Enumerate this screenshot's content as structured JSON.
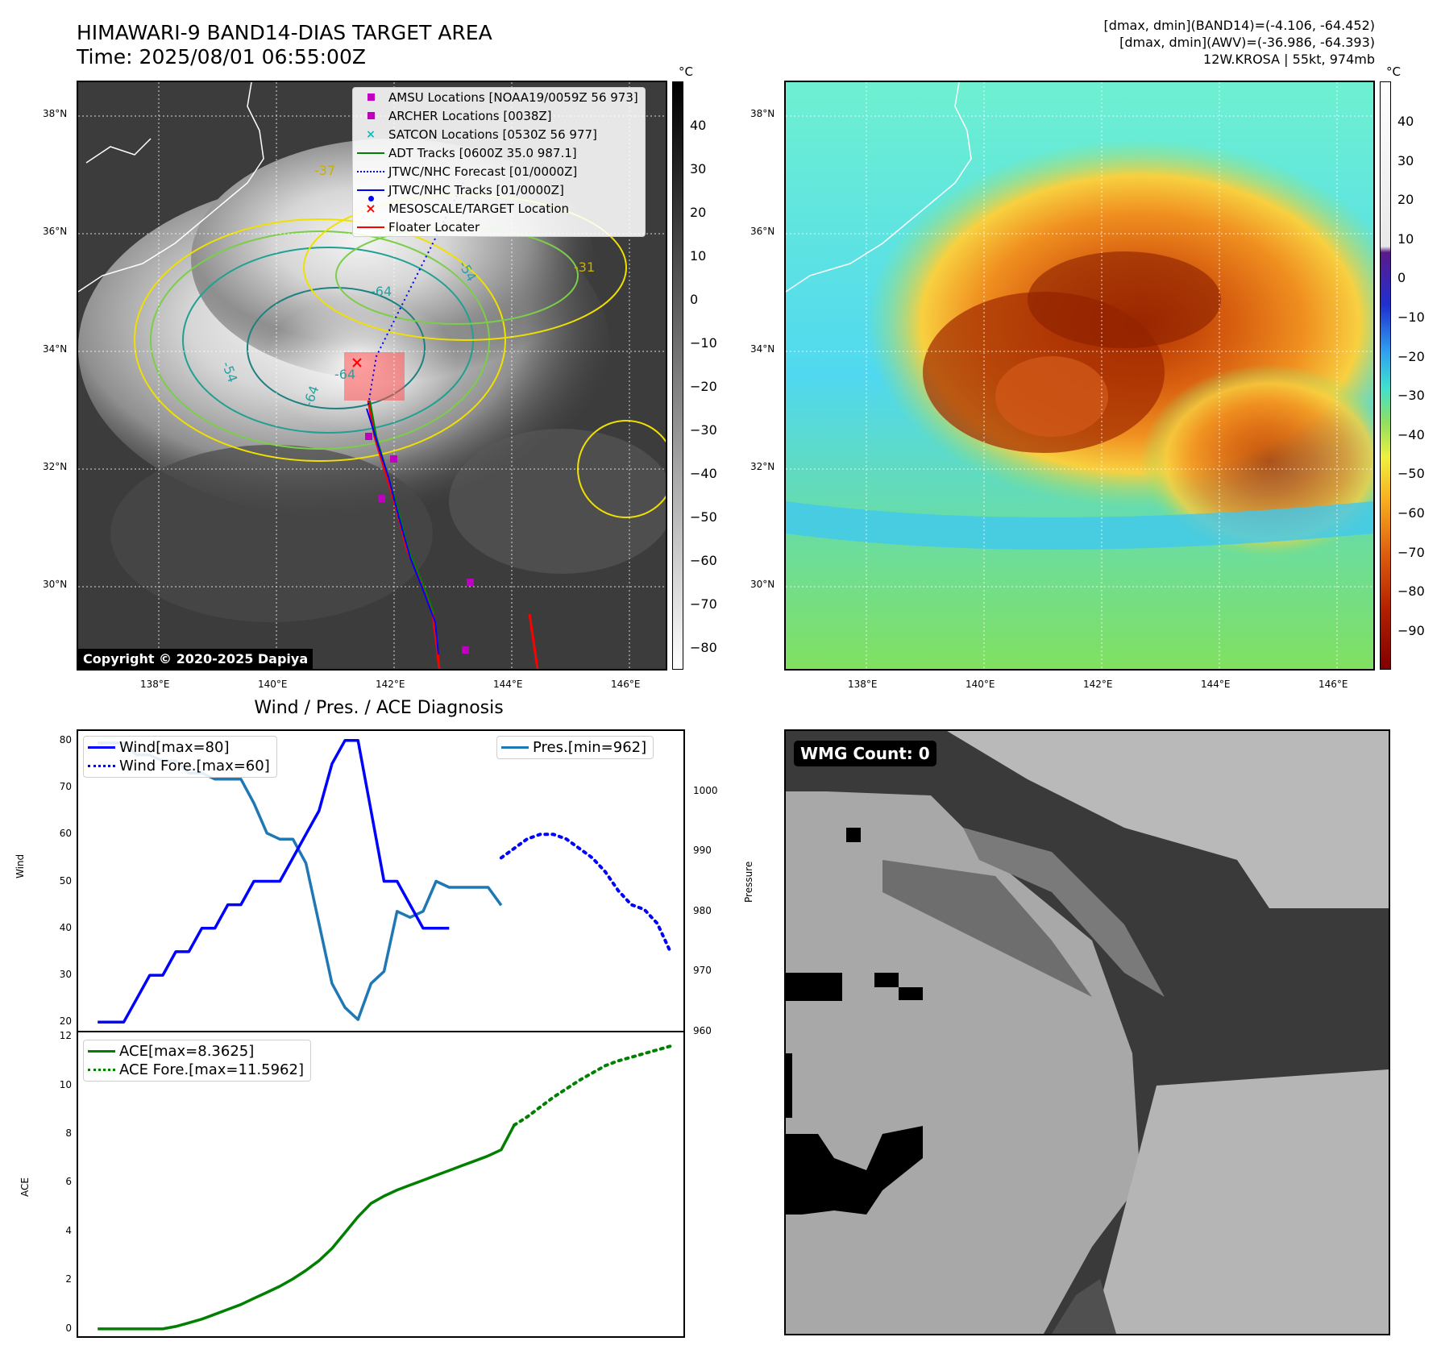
{
  "header": {
    "title": "HIMAWARI-9 BAND14-DIAS TARGET AREA",
    "time": "Time: 2025/08/01 06:55:00Z",
    "info_line1": "[dmax, dmin](BAND14)=(-4.106, -64.452)",
    "info_line2": "[dmax, dmin](AWV)=(-36.986, -64.393)",
    "info_line3": "12W.KROSA | 55kt, 974mb"
  },
  "copyright": "Copyright © 2020-2025 Dapiya",
  "map": {
    "lat_labels": [
      "38°N",
      "36°N",
      "34°N",
      "32°N",
      "30°N"
    ],
    "lon_labels": [
      "138°E",
      "140°E",
      "142°E",
      "144°E",
      "146°E"
    ],
    "contour_labels": [
      "-64",
      "-54",
      "-37",
      "-64",
      "-54",
      "-64",
      "-31"
    ],
    "legend": [
      {
        "label": "AMSU Locations [NOAA19/0059Z 56 973]",
        "color": "#c000c0",
        "symbol": "square"
      },
      {
        "label": "ARCHER Locations [0038Z]",
        "color": "#c000c0",
        "symbol": "square"
      },
      {
        "label": "SATCON Locations [0530Z 56 977]",
        "color": "#00bfbf",
        "symbol": "x"
      },
      {
        "label": "ADT Tracks [0600Z 35.0 987.1]",
        "color": "#008000",
        "symbol": "line"
      },
      {
        "label": "JTWC/NHC Forecast [01/0000Z]",
        "color": "#0000ff",
        "symbol": "dotted"
      },
      {
        "label": "JTWC/NHC Tracks [01/0000Z]",
        "color": "#0000ff",
        "symbol": "line-dot"
      },
      {
        "label": "MESOSCALE/TARGET Location",
        "color": "#ff0000",
        "symbol": "x"
      },
      {
        "label": "Floater Locater",
        "color": "#ff0000",
        "symbol": "line"
      }
    ],
    "colorbar1": {
      "unit": "°C",
      "ticks": [
        "40",
        "30",
        "20",
        "10",
        "0",
        "−10",
        "−20",
        "−30",
        "−40",
        "−50",
        "−60",
        "−70",
        "−80"
      ]
    },
    "colorbar2": {
      "unit": "°C",
      "ticks": [
        "40",
        "30",
        "20",
        "10",
        "0",
        "−10",
        "−20",
        "−30",
        "−40",
        "−50",
        "−60",
        "−70",
        "−80",
        "−90"
      ]
    }
  },
  "wmg": {
    "label": "WMG Count: 0"
  },
  "chart_data": {
    "type": "line",
    "title": "Wind / Pres. / ACE Diagnosis",
    "top": {
      "ylabel_left": "Wind",
      "ylabel_right": "Pressure",
      "ylim_left": [
        18,
        82
      ],
      "ylim_right": [
        960,
        1010
      ],
      "yticks_left": [
        "20",
        "30",
        "40",
        "50",
        "60",
        "70",
        "80"
      ],
      "yticks_right": [
        "960",
        "970",
        "980",
        "990",
        "1000"
      ],
      "series": [
        {
          "name": "Wind[max=80]",
          "color": "#0000ff",
          "style": "solid",
          "x": [
            0,
            1,
            2,
            3,
            4,
            5,
            6,
            7,
            8,
            9,
            10,
            11,
            12,
            13,
            14,
            15,
            16,
            17,
            18,
            19,
            20,
            21,
            22,
            23,
            24,
            25,
            26,
            27
          ],
          "values": [
            20,
            20,
            20,
            25,
            30,
            30,
            35,
            35,
            40,
            40,
            45,
            45,
            50,
            50,
            50,
            55,
            60,
            65,
            75,
            80,
            80,
            65,
            50,
            50,
            45,
            40,
            40,
            40
          ]
        },
        {
          "name": "Wind Fore.[max=60]",
          "color": "#0000ff",
          "style": "dotted",
          "x": [
            31,
            32,
            33,
            34,
            35,
            36,
            37,
            38,
            39,
            40,
            41,
            42,
            43,
            44
          ],
          "values": [
            55,
            57,
            59,
            60,
            60,
            59,
            57,
            55,
            52,
            48,
            45,
            44,
            41,
            35
          ]
        },
        {
          "name": "Pres.[min=962]",
          "color": "#1f77b4",
          "style": "solid",
          "x": [
            0,
            1,
            2,
            3,
            4,
            5,
            6,
            7,
            8,
            9,
            10,
            11,
            12,
            13,
            14,
            15,
            16,
            17,
            18,
            19,
            20,
            21,
            22,
            23,
            24,
            25,
            26,
            27,
            28,
            29,
            30,
            31
          ],
          "values": [
            1008,
            1008,
            1008,
            1006,
            1006,
            1005,
            1005,
            1003,
            1003,
            1002,
            1002,
            1002,
            998,
            993,
            992,
            992,
            988,
            978,
            968,
            964,
            962,
            968,
            970,
            980,
            979,
            980,
            985,
            984,
            984,
            984,
            984,
            981
          ]
        }
      ]
    },
    "bottom": {
      "ylabel": "ACE",
      "ylim": [
        -0.3,
        12.2
      ],
      "yticks": [
        "0",
        "2",
        "4",
        "6",
        "8",
        "10",
        "12"
      ],
      "series": [
        {
          "name": "ACE[max=8.3625]",
          "color": "#008000",
          "style": "solid",
          "x": [
            0,
            1,
            2,
            3,
            4,
            5,
            6,
            7,
            8,
            9,
            10,
            11,
            12,
            13,
            14,
            15,
            16,
            17,
            18,
            19,
            20,
            21,
            22,
            23,
            24,
            25,
            26,
            27,
            28,
            29,
            30,
            31,
            32
          ],
          "values": [
            0,
            0,
            0,
            0,
            0,
            0,
            0.1,
            0.25,
            0.4,
            0.6,
            0.8,
            1.0,
            1.25,
            1.5,
            1.75,
            2.05,
            2.4,
            2.8,
            3.3,
            3.95,
            4.6,
            5.15,
            5.45,
            5.7,
            5.9,
            6.1,
            6.3,
            6.5,
            6.7,
            6.9,
            7.1,
            7.35,
            8.36
          ]
        },
        {
          "name": "ACE Fore.[max=11.5962]",
          "color": "#008000",
          "style": "dotted",
          "x": [
            32,
            33,
            34,
            35,
            36,
            37,
            38,
            39,
            40,
            41,
            42,
            43,
            44
          ],
          "values": [
            8.36,
            8.7,
            9.1,
            9.5,
            9.85,
            10.2,
            10.5,
            10.8,
            11.0,
            11.15,
            11.3,
            11.45,
            11.6
          ]
        }
      ]
    }
  }
}
